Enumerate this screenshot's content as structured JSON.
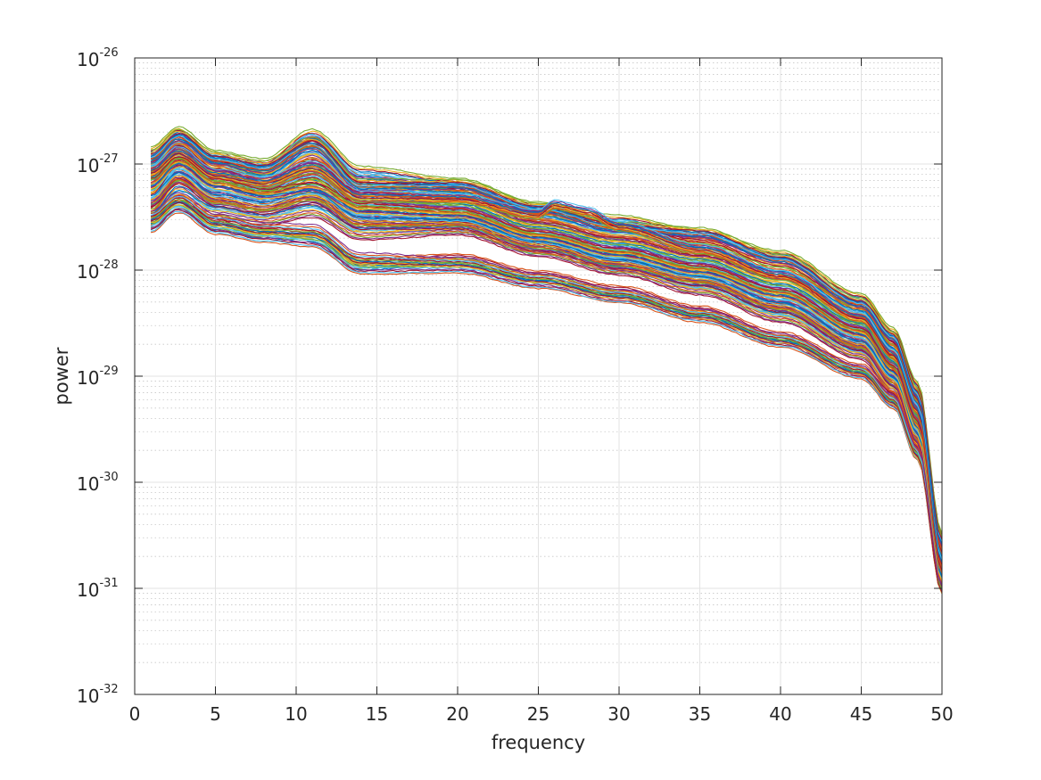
{
  "chart_data": {
    "type": "line",
    "title": "",
    "xlabel": "frequency",
    "ylabel": "power",
    "xlim": [
      0,
      50
    ],
    "ylim": [
      1e-32,
      1e-26
    ],
    "yscale": "log",
    "grid": true,
    "minor_grid": true,
    "legend": "none",
    "x_ticks": [
      0,
      5,
      10,
      15,
      20,
      25,
      30,
      35,
      40,
      45,
      50
    ],
    "x_tick_labels": [
      "0",
      "5",
      "10",
      "15",
      "20",
      "25",
      "30",
      "35",
      "40",
      "45",
      "50"
    ],
    "y_ticks": [
      {
        "base": "10",
        "exp": "-32",
        "value": 1e-32
      },
      {
        "base": "10",
        "exp": "-31",
        "value": 1e-31
      },
      {
        "base": "10",
        "exp": "-30",
        "value": 1e-30
      },
      {
        "base": "10",
        "exp": "-29",
        "value": 1e-29
      },
      {
        "base": "10",
        "exp": "-28",
        "value": 1e-28
      },
      {
        "base": "10",
        "exp": "-27",
        "value": 1e-27
      },
      {
        "base": "10",
        "exp": "-26",
        "value": 1e-26
      }
    ],
    "series_colors": [
      "#0072BD",
      "#D95319",
      "#EDB120",
      "#7E2F8E",
      "#77AC30",
      "#4DBEEE",
      "#A2142F"
    ],
    "x_start": 1,
    "x_end": 50,
    "series": [
      {
        "x": [
          1,
          2.7,
          5,
          8,
          11,
          14,
          20,
          25,
          30,
          35,
          40,
          45,
          47,
          48.5,
          50
        ],
        "y": [
          1.3e-27,
          2e-27,
          1.2e-27,
          1e-27,
          1.9e-27,
          8.5e-28,
          6.7e-28,
          4e-28,
          3e-28,
          2.2e-28,
          1.4e-28,
          5.5e-29,
          2.6e-29,
          8e-30,
          3e-31
        ]
      },
      {
        "x": [
          1,
          2.7,
          5,
          8,
          11,
          14,
          20,
          25,
          30,
          35,
          40,
          45,
          47,
          48.5,
          50
        ],
        "y": [
          1.1e-27,
          1.8e-27,
          1.1e-27,
          9e-28,
          1.7e-27,
          7e-28,
          6e-28,
          3.7e-28,
          2.7e-28,
          2e-28,
          1.2e-28,
          4.8e-29,
          2.2e-29,
          6.5e-30,
          2.5e-31
        ]
      },
      {
        "x": [
          1,
          2.7,
          5,
          8,
          11,
          14,
          20,
          25,
          30,
          35,
          40,
          45,
          47,
          48.5,
          50
        ],
        "y": [
          1e-27,
          1.6e-27,
          9.5e-28,
          8e-28,
          1.4e-27,
          6e-28,
          5.5e-28,
          3.3e-28,
          2.4e-28,
          1.7e-28,
          1e-28,
          4.2e-29,
          1.9e-29,
          5.5e-30,
          2e-31
        ]
      },
      {
        "x": [
          1,
          2.7,
          5,
          8,
          11,
          14,
          20,
          25,
          30,
          35,
          40,
          45,
          47,
          48.5,
          50
        ],
        "y": [
          9e-28,
          1.5e-27,
          9e-28,
          7e-28,
          1.2e-27,
          5.5e-28,
          5e-28,
          3e-28,
          2.1e-28,
          1.5e-28,
          9e-29,
          3.8e-29,
          1.7e-29,
          5e-30,
          1.8e-31
        ]
      },
      {
        "x": [
          1,
          2.7,
          5,
          8,
          11,
          14,
          20,
          25,
          30,
          35,
          40,
          45,
          47,
          48.5,
          50
        ],
        "y": [
          8e-28,
          1.4e-27,
          8.5e-28,
          6.5e-28,
          1e-27,
          5e-28,
          4.5e-28,
          2.7e-28,
          1.9e-28,
          1.3e-28,
          8e-29,
          3.4e-29,
          1.5e-29,
          4.5e-30,
          1.6e-31
        ]
      },
      {
        "x": [
          1,
          2.7,
          5,
          8,
          11,
          14,
          20,
          25,
          30,
          35,
          40,
          45,
          47,
          48.5,
          50
        ],
        "y": [
          7e-28,
          1.2e-27,
          7.5e-28,
          6e-28,
          8.5e-28,
          4.5e-28,
          4e-28,
          2.4e-28,
          1.7e-28,
          1.2e-28,
          7e-29,
          3e-29,
          1.3e-29,
          4e-30,
          1.5e-31
        ]
      },
      {
        "x": [
          1,
          2.7,
          5,
          8,
          11,
          14,
          20,
          25,
          30,
          35,
          40,
          45,
          47,
          48.5,
          50
        ],
        "y": [
          6e-28,
          1.1e-27,
          7e-28,
          5.5e-28,
          7.5e-28,
          4e-28,
          3.6e-28,
          2.2e-28,
          1.5e-28,
          1.05e-28,
          6.2e-29,
          2.7e-29,
          1.2e-29,
          3.6e-30,
          1.4e-31
        ]
      },
      {
        "x": [
          1,
          2.7,
          5,
          8,
          11,
          14,
          20,
          25,
          30,
          35,
          40,
          45,
          47,
          48.5,
          50
        ],
        "y": [
          5e-28,
          9.5e-28,
          6e-28,
          5e-28,
          6.5e-28,
          3.5e-28,
          3.2e-28,
          2e-28,
          1.35e-28,
          9.5e-29,
          5.5e-29,
          2.4e-29,
          1.1e-29,
          3.2e-30,
          1.3e-31
        ]
      },
      {
        "x": [
          1,
          2.7,
          5,
          8,
          11,
          14,
          20,
          25,
          30,
          35,
          40,
          45,
          47,
          48.5,
          50
        ],
        "y": [
          4e-28,
          8e-28,
          5e-28,
          4.2e-28,
          5.5e-28,
          3e-28,
          2.9e-28,
          1.8e-28,
          1.2e-28,
          8.5e-29,
          4.8e-29,
          2.1e-29,
          9.5e-30,
          2.8e-30,
          1.2e-31
        ]
      },
      {
        "x": [
          1,
          2.7,
          5,
          8,
          11,
          14,
          20,
          25,
          30,
          35,
          40,
          45,
          47,
          48.5,
          50
        ],
        "y": [
          3.5e-28,
          6.5e-28,
          4.2e-28,
          3.5e-28,
          4.5e-28,
          2.6e-28,
          2.6e-28,
          1.6e-28,
          1.1e-28,
          7.5e-29,
          4.2e-29,
          1.8e-29,
          8.5e-30,
          2.5e-30,
          1.1e-31
        ]
      },
      {
        "x": [
          1,
          2.7,
          5,
          8,
          11,
          14,
          20,
          25,
          30,
          35,
          40,
          45,
          47,
          48.5,
          50
        ],
        "y": [
          3e-28,
          5e-28,
          3.5e-28,
          3e-28,
          3.6e-28,
          2.2e-28,
          2.4e-28,
          1.5e-28,
          1e-28,
          6.5e-29,
          3.6e-29,
          1.6e-29,
          7.5e-30,
          2.2e-30,
          1.05e-31
        ]
      },
      {
        "x": [
          1,
          2.7,
          5,
          8,
          11,
          14,
          20,
          25,
          30,
          35,
          40,
          45,
          47,
          48.5,
          50
        ],
        "y": [
          2.8e-28,
          4.3e-28,
          2.7e-28,
          2.3e-28,
          2.1e-28,
          1.15e-28,
          1.3e-28,
          9e-29,
          6.5e-29,
          4.2e-29,
          2.4e-29,
          1.2e-29,
          6.5e-30,
          2e-30,
          1e-31
        ]
      },
      {
        "x": [
          1,
          2.7,
          5,
          8,
          11,
          14,
          20,
          25,
          30,
          35,
          40,
          45,
          47,
          48.5,
          50
        ],
        "y": [
          2.6e-28,
          4e-28,
          2.5e-28,
          2.1e-28,
          1.9e-28,
          1.05e-28,
          1.05e-28,
          7.5e-29,
          5.5e-29,
          3.6e-29,
          2.1e-29,
          1.05e-29,
          5.5e-30,
          1.8e-30,
          1e-31
        ]
      },
      {
        "x": [
          1,
          2.7,
          5,
          8,
          11,
          14,
          20,
          25,
          30,
          35,
          40,
          45,
          47,
          48.5,
          50
        ],
        "y": [
          3.2e-28,
          4.8e-28,
          3e-28,
          2.5e-28,
          2.4e-28,
          1.3e-28,
          1.2e-28,
          8.5e-29,
          6e-29,
          3.9e-29,
          2.3e-29,
          1.15e-29,
          6e-30,
          1.9e-30,
          1e-31
        ]
      },
      {
        "x": [
          1,
          2.7,
          5,
          8,
          11,
          14,
          20,
          25,
          30,
          35,
          40,
          45,
          47,
          48.5,
          50
        ],
        "y": [
          1.2e-27,
          1.9e-27,
          1.15e-27,
          9.5e-28,
          1.6e-27,
          6.5e-28,
          6.5e-28,
          3.9e-28,
          2.6e-28,
          2.3e-28,
          1.3e-28,
          5e-29,
          2.4e-29,
          7e-30,
          2.8e-31
        ]
      },
      {
        "x": [
          1,
          2.7,
          5,
          8,
          11,
          14,
          20,
          25,
          26,
          28,
          30,
          35,
          40,
          45,
          47,
          48.5,
          50
        ],
        "y": [
          8.5e-28,
          1.3e-27,
          8e-28,
          6.8e-28,
          9.5e-28,
          5e-28,
          4.8e-28,
          3.4e-28,
          4.2e-28,
          3.6e-28,
          2.6e-28,
          1.6e-28,
          9e-29,
          3.6e-29,
          1.6e-29,
          4.8e-30,
          1.7e-31
        ]
      },
      {
        "x": [
          1,
          2.7,
          5,
          8,
          11,
          14,
          20,
          25,
          30,
          35,
          40,
          45,
          47,
          48.5,
          50
        ],
        "y": [
          6.5e-28,
          1.05e-27,
          6.5e-28,
          5.2e-28,
          6e-28,
          3.8e-28,
          3.4e-28,
          2.1e-28,
          1.45e-28,
          1e-28,
          6e-29,
          2.6e-29,
          1.15e-29,
          3.4e-30,
          1.35e-31
        ]
      },
      {
        "x": [
          1,
          2.7,
          5,
          8,
          11,
          14,
          20,
          25,
          30,
          35,
          40,
          45,
          47,
          48.5,
          50
        ],
        "y": [
          4.5e-28,
          7.5e-28,
          4.6e-28,
          3.9e-28,
          4.9e-28,
          2.8e-28,
          2.75e-28,
          1.7e-28,
          1.15e-28,
          8e-29,
          4.5e-29,
          1.95e-29,
          9e-30,
          2.6e-30,
          1.15e-31
        ]
      }
    ]
  }
}
